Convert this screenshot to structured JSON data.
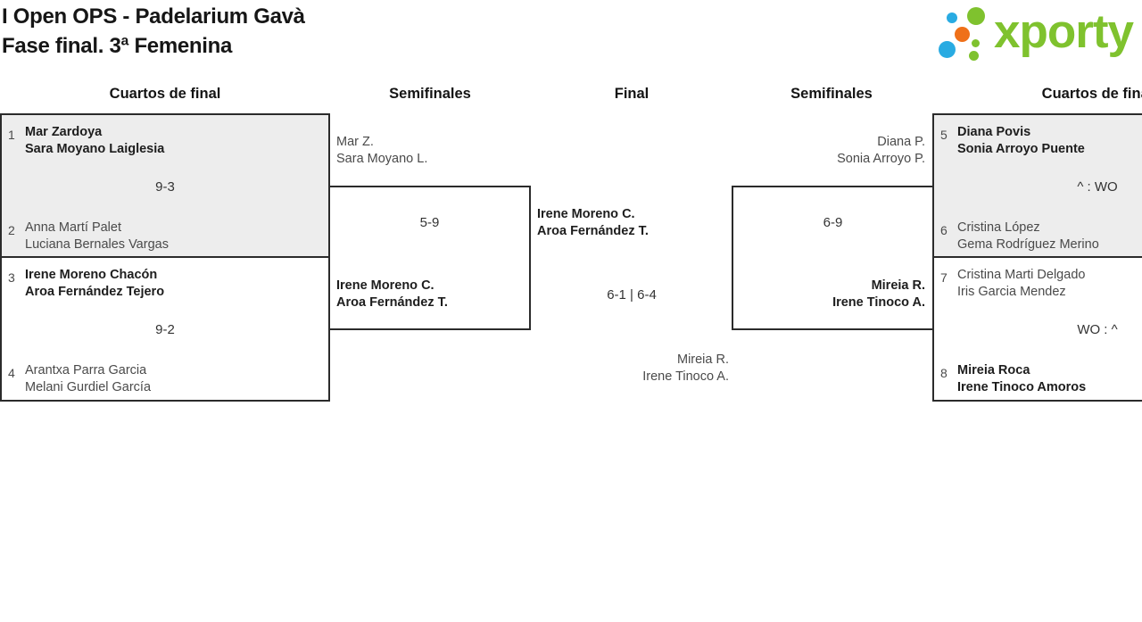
{
  "header": {
    "title_line1": "I Open OPS - Padelarium Gavà",
    "title_line2": "Fase final. 3ª Femenina"
  },
  "logo": {
    "wordmark": "xporty",
    "colors": {
      "green": "#7fc22e",
      "blue": "#29abe2",
      "orange": "#ef7019"
    }
  },
  "round_labels": {
    "qf_left": "Cuartos de final",
    "sf_left": "Semifinales",
    "final": "Final",
    "sf_right": "Semifinales",
    "qf_right": "Cuartos de final"
  },
  "bracket": {
    "qf_left_1": {
      "seed_top": "1",
      "top_player1": "Mar Zardoya",
      "top_player2": "Sara Moyano Laiglesia",
      "score": "9-3",
      "seed_bottom": "2",
      "bottom_player1": "Anna Martí Palet",
      "bottom_player2": "Luciana Bernales Vargas"
    },
    "qf_left_2": {
      "seed_top": "3",
      "top_player1": "Irene Moreno Chacón",
      "top_player2": "Aroa Fernández Tejero",
      "score": "9-2",
      "seed_bottom": "4",
      "bottom_player1": "Arantxa Parra Garcia",
      "bottom_player2": "Melani Gurdiel García"
    },
    "sf_left": {
      "top_player1": "Mar Z.",
      "top_player2": "Sara Moyano L.",
      "score": "5-9",
      "bottom_player1": "Irene Moreno C.",
      "bottom_player2": "Aroa Fernández T."
    },
    "final": {
      "top_player1": "Irene Moreno C.",
      "top_player2": "Aroa Fernández T.",
      "score": "6-1 | 6-4",
      "bottom_player1": "Mireia R.",
      "bottom_player2": "Irene Tinoco A."
    },
    "sf_right": {
      "top_player1": "Diana P.",
      "top_player2": "Sonia Arroyo P.",
      "score": "6-9",
      "bottom_player1": "Mireia R.",
      "bottom_player2": "Irene Tinoco A."
    },
    "qf_right_1": {
      "seed_top": "5",
      "top_player1": "Diana Povis",
      "top_player2": "Sonia Arroyo Puente",
      "score": "^ : WO",
      "seed_bottom": "6",
      "bottom_player1": "Cristina López",
      "bottom_player2": "Gema Rodríguez Merino"
    },
    "qf_right_2": {
      "seed_top": "7",
      "top_player1": "Cristina Marti Delgado",
      "top_player2": "Iris Garcia Mendez",
      "score": "WO : ^",
      "seed_bottom": "8",
      "bottom_player1": "Mireia Roca",
      "bottom_player2": "Irene Tinoco Amoros"
    }
  }
}
